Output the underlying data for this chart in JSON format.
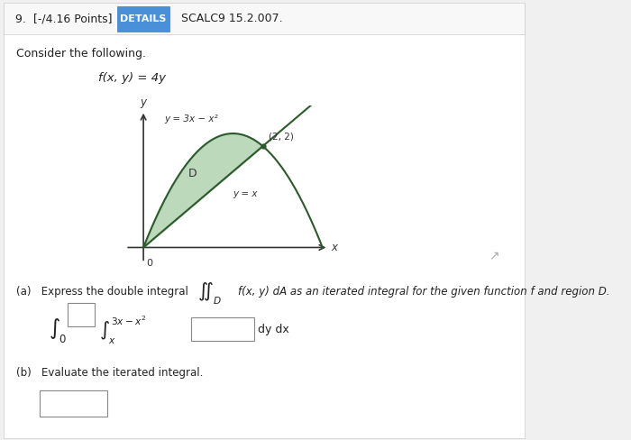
{
  "bg_color": "#f0f0f0",
  "card_bg": "#ffffff",
  "header_text": "9.  [-/4.16 Points]",
  "details_btn": "DETAILS",
  "scalc_text": "SCALC9 15.2.007.",
  "consider_text": "Consider the following.",
  "function_text": "f(x, y) = 4y",
  "curve1_label": "y = 3x − x²",
  "curve2_label": "y = x",
  "point_label": "(2, 2)",
  "region_label": "D",
  "origin_label": "0",
  "x_label": "x",
  "y_label": "y",
  "part_a_text": "(a)   Express the double integral",
  "integral_text": "∬",
  "sub_D": "D",
  "integrand_text": "f(x, y) dA as an iterated integral for the given function f and region D.",
  "lower_outer": "0",
  "upper_outer": "",
  "lower_inner": "x",
  "upper_inner": "3x − x²",
  "inner_blank_label": "",
  "dy_dx_text": "dy dx",
  "part_b_text": "(b)   Evaluate the iterated integral.",
  "fill_color": "#90c090",
  "fill_alpha": 0.6,
  "line_color": "#2d5a2d",
  "axes_color": "#333333"
}
